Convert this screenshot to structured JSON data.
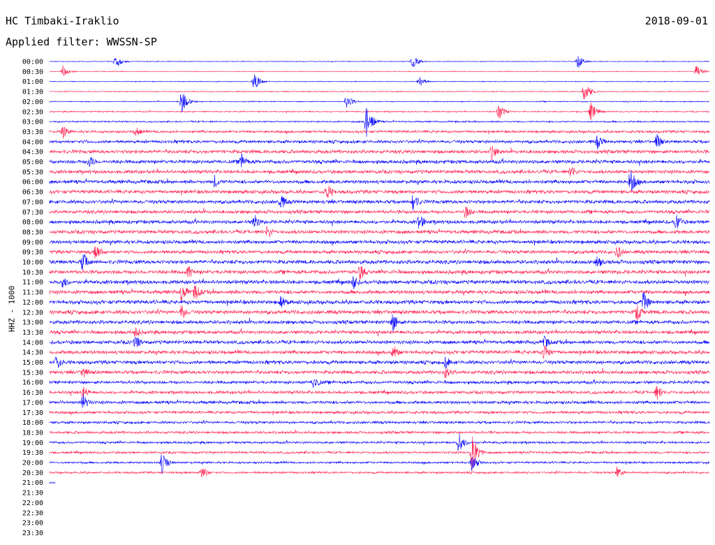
{
  "header": {
    "station": "HC Timbaki-Iraklio",
    "date": "2018-09-01",
    "filter": "Applied filter: WWSSN-SP",
    "channel": "HHZ - 1000"
  },
  "colors": {
    "even": "#0000ff",
    "odd": "#ff1f4f"
  },
  "chart_data": {
    "type": "line",
    "title": "HC Timbaki-Iraklio",
    "date": "2018-09-01",
    "filter": "WWSSN-SP",
    "ylabel": "HHZ - 1000",
    "row_labels": [
      "00:00",
      "00:30",
      "01:00",
      "01:30",
      "02:00",
      "02:30",
      "03:00",
      "03:30",
      "04:00",
      "04:30",
      "05:00",
      "05:30",
      "06:00",
      "06:30",
      "07:00",
      "07:30",
      "08:00",
      "08:30",
      "09:00",
      "09:30",
      "10:00",
      "10:30",
      "11:00",
      "11:30",
      "12:00",
      "12:30",
      "13:00",
      "13:30",
      "14:00",
      "14:30",
      "15:00",
      "15:30",
      "16:00",
      "16:30",
      "17:00",
      "17:30",
      "18:00",
      "18:30",
      "19:00",
      "19:30",
      "20:00",
      "20:30",
      "21:00",
      "21:30",
      "22:00",
      "22:30",
      "23:00",
      "23:30"
    ],
    "recorded_rows": 43,
    "row_minutes": 30,
    "amplitude_level": [
      0.15,
      0.15,
      0.15,
      0.2,
      0.2,
      0.25,
      0.3,
      0.5,
      0.6,
      0.7,
      0.7,
      0.7,
      0.7,
      0.7,
      0.7,
      0.7,
      0.7,
      0.7,
      0.7,
      0.7,
      0.75,
      0.75,
      0.75,
      0.75,
      0.75,
      0.75,
      0.7,
      0.7,
      0.7,
      0.7,
      0.7,
      0.7,
      0.6,
      0.6,
      0.6,
      0.55,
      0.5,
      0.5,
      0.45,
      0.45,
      0.4,
      0.4,
      0.35
    ],
    "events": [
      {
        "row": 0,
        "t": 0.1,
        "a": 1.2
      },
      {
        "row": 0,
        "t": 0.55,
        "a": 1.2
      },
      {
        "row": 0,
        "t": 0.8,
        "a": 1.3
      },
      {
        "row": 1,
        "t": 0.02,
        "a": 1.0
      },
      {
        "row": 1,
        "t": 0.98,
        "a": 1.0
      },
      {
        "row": 2,
        "t": 0.31,
        "a": 1.5
      },
      {
        "row": 2,
        "t": 0.56,
        "a": 1.0
      },
      {
        "row": 3,
        "t": 0.81,
        "a": 1.8
      },
      {
        "row": 4,
        "t": 0.2,
        "a": 2.0
      },
      {
        "row": 4,
        "t": 0.45,
        "a": 1.2
      },
      {
        "row": 5,
        "t": 0.68,
        "a": 1.5
      },
      {
        "row": 5,
        "t": 0.82,
        "a": 1.6
      },
      {
        "row": 6,
        "t": 0.48,
        "a": 2.8
      },
      {
        "row": 7,
        "t": 0.02,
        "a": 1.2
      },
      {
        "row": 7,
        "t": 0.13,
        "a": 1.0
      },
      {
        "row": 8,
        "t": 0.83,
        "a": 1.3
      },
      {
        "row": 8,
        "t": 0.92,
        "a": 1.3
      },
      {
        "row": 9,
        "t": 0.67,
        "a": 1.4
      },
      {
        "row": 10,
        "t": 0.06,
        "a": 1.2
      },
      {
        "row": 10,
        "t": 0.29,
        "a": 1.5
      },
      {
        "row": 11,
        "t": 0.79,
        "a": 1.3
      },
      {
        "row": 12,
        "t": 0.25,
        "a": 1.2
      },
      {
        "row": 12,
        "t": 0.88,
        "a": 2.2
      },
      {
        "row": 13,
        "t": 0.42,
        "a": 1.6
      },
      {
        "row": 14,
        "t": 0.35,
        "a": 1.5
      },
      {
        "row": 14,
        "t": 0.55,
        "a": 1.8
      },
      {
        "row": 15,
        "t": 0.63,
        "a": 1.3
      },
      {
        "row": 16,
        "t": 0.31,
        "a": 1.4
      },
      {
        "row": 16,
        "t": 0.56,
        "a": 1.6
      },
      {
        "row": 16,
        "t": 0.95,
        "a": 1.6
      },
      {
        "row": 17,
        "t": 0.33,
        "a": 1.3
      },
      {
        "row": 19,
        "t": 0.07,
        "a": 1.6
      },
      {
        "row": 19,
        "t": 0.86,
        "a": 1.3
      },
      {
        "row": 20,
        "t": 0.05,
        "a": 1.8
      },
      {
        "row": 20,
        "t": 0.83,
        "a": 1.2
      },
      {
        "row": 21,
        "t": 0.21,
        "a": 1.3
      },
      {
        "row": 21,
        "t": 0.47,
        "a": 1.6
      },
      {
        "row": 22,
        "t": 0.02,
        "a": 1.2
      },
      {
        "row": 22,
        "t": 0.46,
        "a": 1.3
      },
      {
        "row": 23,
        "t": 0.2,
        "a": 1.8
      },
      {
        "row": 23,
        "t": 0.22,
        "a": 1.6
      },
      {
        "row": 24,
        "t": 0.35,
        "a": 1.3
      },
      {
        "row": 24,
        "t": 0.9,
        "a": 1.8
      },
      {
        "row": 25,
        "t": 0.2,
        "a": 1.5
      },
      {
        "row": 25,
        "t": 0.89,
        "a": 1.6
      },
      {
        "row": 26,
        "t": 0.52,
        "a": 1.8
      },
      {
        "row": 27,
        "t": 0.13,
        "a": 1.2
      },
      {
        "row": 28,
        "t": 0.13,
        "a": 1.3
      },
      {
        "row": 28,
        "t": 0.75,
        "a": 1.3
      },
      {
        "row": 29,
        "t": 0.52,
        "a": 1.5
      },
      {
        "row": 29,
        "t": 0.75,
        "a": 1.6
      },
      {
        "row": 30,
        "t": 0.01,
        "a": 1.4
      },
      {
        "row": 30,
        "t": 0.6,
        "a": 1.2
      },
      {
        "row": 31,
        "t": 0.05,
        "a": 1.2
      },
      {
        "row": 31,
        "t": 0.6,
        "a": 1.2
      },
      {
        "row": 32,
        "t": 0.4,
        "a": 1.3
      },
      {
        "row": 33,
        "t": 0.05,
        "a": 1.2
      },
      {
        "row": 33,
        "t": 0.92,
        "a": 1.4
      },
      {
        "row": 34,
        "t": 0.05,
        "a": 1.6
      },
      {
        "row": 38,
        "t": 0.62,
        "a": 1.8
      },
      {
        "row": 39,
        "t": 0.64,
        "a": 3.2
      },
      {
        "row": 40,
        "t": 0.17,
        "a": 2.0
      },
      {
        "row": 40,
        "t": 0.64,
        "a": 1.6
      },
      {
        "row": 41,
        "t": 0.23,
        "a": 1.2
      },
      {
        "row": 41,
        "t": 0.86,
        "a": 1.0
      }
    ]
  }
}
